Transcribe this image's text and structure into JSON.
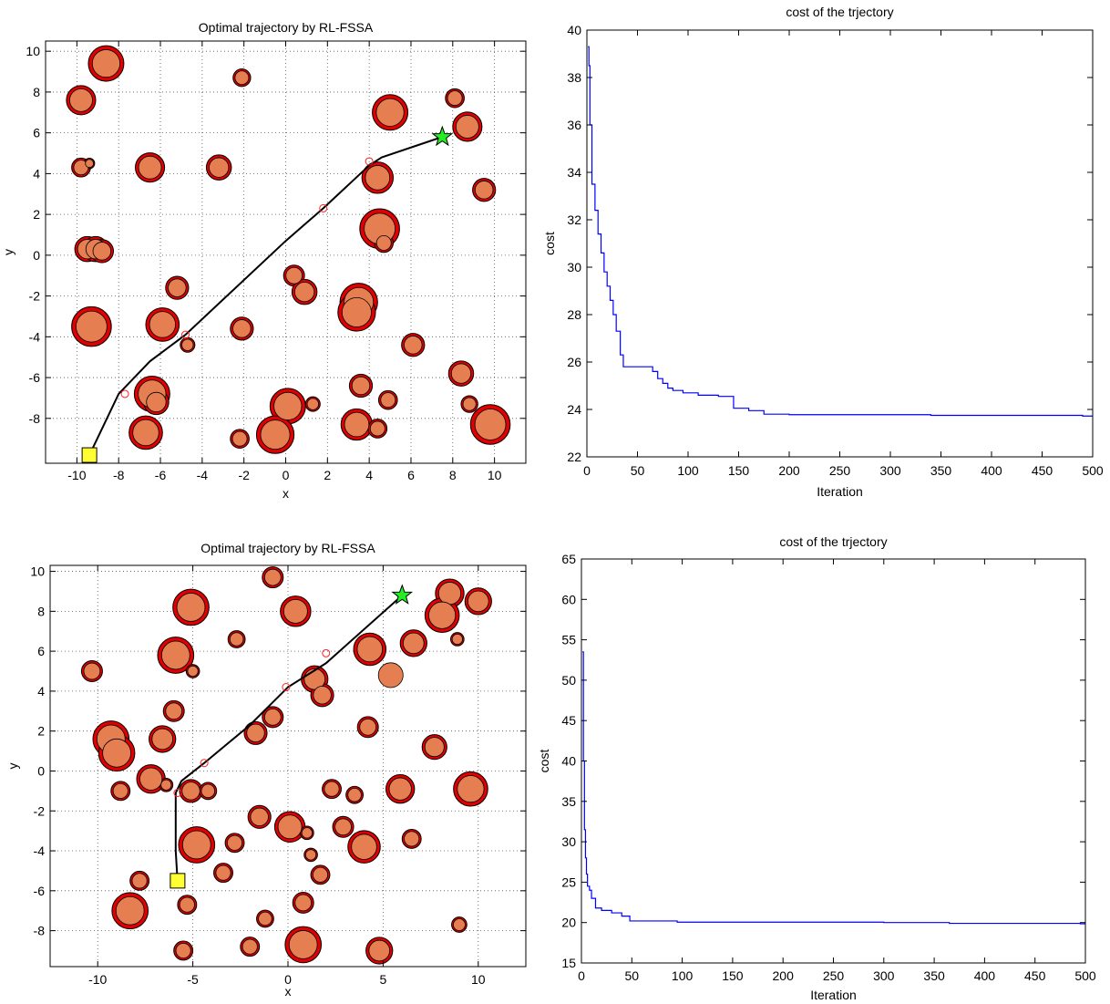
{
  "chart_data": [
    {
      "type": "scatter",
      "title": "Optimal trajectory by RL-FSSA",
      "xlabel": "x",
      "ylabel": "y",
      "xlim": [
        -11.5,
        11.5
      ],
      "ylim": [
        -10.2,
        10.5
      ],
      "xticks": [
        -10,
        -8,
        -6,
        -4,
        -2,
        0,
        2,
        4,
        6,
        8,
        10
      ],
      "yticks": [
        -8,
        -6,
        -4,
        -2,
        0,
        2,
        4,
        6,
        8,
        10
      ],
      "grid": true,
      "obstacles": [
        {
          "x": -8.6,
          "y": 9.4,
          "r": 0.85
        },
        {
          "x": -9.8,
          "y": 7.6,
          "r": 0.7
        },
        {
          "x": -2.1,
          "y": 8.7,
          "r": 0.42
        },
        {
          "x": 8.1,
          "y": 7.7,
          "r": 0.45
        },
        {
          "x": 5.0,
          "y": 7.0,
          "r": 0.85
        },
        {
          "x": 8.7,
          "y": 6.3,
          "r": 0.7
        },
        {
          "x": -9.8,
          "y": 4.3,
          "r": 0.45
        },
        {
          "x": -9.4,
          "y": 4.5,
          "r": 0.25
        },
        {
          "x": -6.5,
          "y": 4.3,
          "r": 0.7
        },
        {
          "x": -3.2,
          "y": 4.3,
          "r": 0.6
        },
        {
          "x": 4.4,
          "y": 3.8,
          "r": 0.75
        },
        {
          "x": 9.5,
          "y": 3.2,
          "r": 0.55
        },
        {
          "x": -9.5,
          "y": 0.3,
          "r": 0.6
        },
        {
          "x": -9.1,
          "y": 0.3,
          "r": 0.6
        },
        {
          "x": -8.8,
          "y": 0.2,
          "r": 0.55
        },
        {
          "x": 4.5,
          "y": 1.3,
          "r": 0.95
        },
        {
          "x": 4.7,
          "y": 0.6,
          "r": 0.45
        },
        {
          "x": -5.2,
          "y": -1.6,
          "r": 0.55
        },
        {
          "x": 0.4,
          "y": -1.0,
          "r": 0.5
        },
        {
          "x": 0.9,
          "y": -1.8,
          "r": 0.6
        },
        {
          "x": 3.5,
          "y": -2.3,
          "r": 0.9
        },
        {
          "x": 3.4,
          "y": -2.8,
          "r": 0.9
        },
        {
          "x": -9.3,
          "y": -3.5,
          "r": 0.95
        },
        {
          "x": -5.9,
          "y": -3.4,
          "r": 0.8
        },
        {
          "x": -2.1,
          "y": -3.6,
          "r": 0.55
        },
        {
          "x": -4.7,
          "y": -4.4,
          "r": 0.35
        },
        {
          "x": 6.1,
          "y": -4.4,
          "r": 0.55
        },
        {
          "x": 8.4,
          "y": -5.8,
          "r": 0.6
        },
        {
          "x": 3.6,
          "y": -6.4,
          "r": 0.55
        },
        {
          "x": -6.4,
          "y": -6.8,
          "r": 0.85
        },
        {
          "x": -6.2,
          "y": -7.2,
          "r": 0.6
        },
        {
          "x": 0.1,
          "y": -7.4,
          "r": 0.85
        },
        {
          "x": 1.3,
          "y": -7.3,
          "r": 0.35
        },
        {
          "x": 4.9,
          "y": -7.1,
          "r": 0.45
        },
        {
          "x": 8.8,
          "y": -7.3,
          "r": 0.4
        },
        {
          "x": -6.7,
          "y": -8.7,
          "r": 0.8
        },
        {
          "x": 3.4,
          "y": -8.3,
          "r": 0.75
        },
        {
          "x": 4.4,
          "y": -8.5,
          "r": 0.45
        },
        {
          "x": 9.8,
          "y": -8.3,
          "r": 0.95
        },
        {
          "x": -2.2,
          "y": -9.0,
          "r": 0.45
        },
        {
          "x": -0.5,
          "y": -8.8,
          "r": 0.9
        }
      ],
      "path": {
        "x": [
          -9.4,
          -8.0,
          -6.5,
          -4.8,
          0.0,
          1.8,
          4.0,
          4.6,
          7.5
        ],
        "y": [
          -9.8,
          -6.8,
          -5.2,
          -3.9,
          0.7,
          2.3,
          4.4,
          4.8,
          5.8
        ]
      },
      "waypoints": {
        "x": [
          -7.7,
          -4.8,
          1.8,
          4.0
        ],
        "y": [
          -6.8,
          -3.9,
          2.3,
          4.6
        ]
      },
      "start": {
        "x": -9.4,
        "y": -9.8
      },
      "goal": {
        "x": 7.5,
        "y": 5.8
      },
      "colors": {
        "fill": "#e57e50",
        "ring": "#e00000",
        "path": "#000000",
        "waypoint": "#ff2020",
        "start": "#ffff33",
        "goal": "#22ee22"
      }
    },
    {
      "type": "line",
      "title": "cost of the trjectory",
      "xlabel": "Iteration",
      "ylabel": "cost",
      "xlim": [
        0,
        500
      ],
      "ylim": [
        22,
        40
      ],
      "xticks": [
        0,
        50,
        100,
        150,
        200,
        250,
        300,
        350,
        400,
        450,
        500
      ],
      "yticks": [
        22,
        24,
        26,
        28,
        30,
        32,
        34,
        36,
        38,
        40
      ],
      "grid": false,
      "series": [
        {
          "x": [
            1,
            2,
            3,
            5,
            8,
            11,
            14,
            17,
            20,
            23,
            26,
            29,
            33,
            36,
            50,
            65,
            70,
            75,
            80,
            85,
            95,
            110,
            130,
            145,
            160,
            175,
            200,
            340,
            490,
            500
          ],
          "y": [
            39.3,
            38.5,
            36.0,
            33.5,
            32.4,
            31.4,
            30.6,
            29.8,
            29.2,
            28.6,
            28.0,
            27.3,
            26.3,
            25.8,
            25.8,
            25.6,
            25.3,
            25.1,
            24.9,
            24.8,
            24.7,
            24.6,
            24.55,
            24.05,
            23.95,
            23.8,
            23.78,
            23.75,
            23.72,
            23.7
          ],
          "color": "#0000ff"
        }
      ]
    },
    {
      "type": "scatter",
      "title": "Optimal trajectory by RL-FSSA",
      "xlabel": "x",
      "ylabel": "y",
      "xlim": [
        -12.5,
        12.5
      ],
      "ylim": [
        -9.8,
        10.3
      ],
      "xticks": [
        -10,
        -5,
        0,
        5,
        10
      ],
      "yticks": [
        -8,
        -6,
        -4,
        -2,
        0,
        2,
        4,
        6,
        8,
        10
      ],
      "grid": true,
      "obstacles": [
        {
          "x": -0.8,
          "y": 9.7,
          "r": 0.55
        },
        {
          "x": 8.5,
          "y": 8.9,
          "r": 0.75
        },
        {
          "x": 10.0,
          "y": 8.5,
          "r": 0.7
        },
        {
          "x": -5.1,
          "y": 8.2,
          "r": 0.95
        },
        {
          "x": 0.4,
          "y": 8.0,
          "r": 0.8
        },
        {
          "x": 8.1,
          "y": 7.8,
          "r": 0.9
        },
        {
          "x": -2.7,
          "y": 6.6,
          "r": 0.45
        },
        {
          "x": 8.9,
          "y": 6.6,
          "r": 0.35
        },
        {
          "x": 6.6,
          "y": 6.4,
          "r": 0.7
        },
        {
          "x": 4.3,
          "y": 6.1,
          "r": 0.85
        },
        {
          "x": -5.9,
          "y": 5.8,
          "r": 0.95
        },
        {
          "x": -10.3,
          "y": 5.0,
          "r": 0.55
        },
        {
          "x": -5.0,
          "y": 5.0,
          "r": 0.35
        },
        {
          "x": 1.4,
          "y": 4.6,
          "r": 0.7
        },
        {
          "x": 1.8,
          "y": 3.8,
          "r": 0.6
        },
        {
          "x": -6.0,
          "y": 3.0,
          "r": 0.55
        },
        {
          "x": -0.8,
          "y": 2.7,
          "r": 0.55
        },
        {
          "x": 4.2,
          "y": 2.2,
          "r": 0.55
        },
        {
          "x": -9.3,
          "y": 1.6,
          "r": 0.95
        },
        {
          "x": -1.7,
          "y": 1.9,
          "r": 0.6
        },
        {
          "x": -6.6,
          "y": 1.6,
          "r": 0.7
        },
        {
          "x": -9.0,
          "y": 0.9,
          "r": 0.95
        },
        {
          "x": 7.7,
          "y": 1.2,
          "r": 0.65
        },
        {
          "x": -7.2,
          "y": -0.4,
          "r": 0.75
        },
        {
          "x": -6.4,
          "y": -0.7,
          "r": 0.35
        },
        {
          "x": -8.8,
          "y": -1.0,
          "r": 0.5
        },
        {
          "x": -5.1,
          "y": -1.0,
          "r": 0.6
        },
        {
          "x": -4.2,
          "y": -1.0,
          "r": 0.45
        },
        {
          "x": 2.3,
          "y": -0.9,
          "r": 0.5
        },
        {
          "x": 3.5,
          "y": -1.2,
          "r": 0.45
        },
        {
          "x": 5.9,
          "y": -0.9,
          "r": 0.75
        },
        {
          "x": 9.6,
          "y": -0.9,
          "r": 0.9
        },
        {
          "x": -1.5,
          "y": -2.3,
          "r": 0.6
        },
        {
          "x": 0.1,
          "y": -2.8,
          "r": 0.8
        },
        {
          "x": 2.9,
          "y": -2.8,
          "r": 0.55
        },
        {
          "x": 1.0,
          "y": -3.1,
          "r": 0.35
        },
        {
          "x": -4.8,
          "y": -3.7,
          "r": 0.95
        },
        {
          "x": -2.8,
          "y": -3.6,
          "r": 0.5
        },
        {
          "x": 4.0,
          "y": -3.8,
          "r": 0.85
        },
        {
          "x": 6.5,
          "y": -3.4,
          "r": 0.5
        },
        {
          "x": 1.2,
          "y": -4.2,
          "r": 0.35
        },
        {
          "x": -3.4,
          "y": -5.1,
          "r": 0.5
        },
        {
          "x": 1.7,
          "y": -5.2,
          "r": 0.5
        },
        {
          "x": -7.8,
          "y": -5.5,
          "r": 0.5
        },
        {
          "x": -5.3,
          "y": -6.7,
          "r": 0.5
        },
        {
          "x": 0.8,
          "y": -6.6,
          "r": 0.55
        },
        {
          "x": -8.3,
          "y": -7.0,
          "r": 0.95
        },
        {
          "x": -1.2,
          "y": -7.4,
          "r": 0.45
        },
        {
          "x": 9.0,
          "y": -7.7,
          "r": 0.4
        },
        {
          "x": 0.8,
          "y": -8.7,
          "r": 0.95
        },
        {
          "x": -2.0,
          "y": -8.8,
          "r": 0.5
        },
        {
          "x": -5.5,
          "y": -9.0,
          "r": 0.5
        },
        {
          "x": 4.8,
          "y": -9.0,
          "r": 0.7
        }
      ],
      "plain_obstacles": [
        {
          "x": 5.4,
          "y": 4.8,
          "r": 0.65
        }
      ],
      "path": {
        "x": [
          -5.8,
          -5.9,
          -5.9,
          -5.6,
          -4.4,
          -2.0,
          0.0,
          2.0,
          6.0
        ],
        "y": [
          -5.6,
          -4.0,
          -1.1,
          -0.5,
          0.4,
          2.3,
          4.2,
          5.4,
          8.8
        ]
      },
      "waypoints": {
        "x": [
          -5.8,
          -4.4,
          -0.1,
          2.0
        ],
        "y": [
          -1.1,
          0.4,
          4.2,
          5.9
        ]
      },
      "start": {
        "x": -5.8,
        "y": -5.5
      },
      "goal": {
        "x": 6.0,
        "y": 8.8
      },
      "colors": {
        "fill": "#e57e50",
        "ring": "#e00000",
        "path": "#000000",
        "waypoint": "#ff2020",
        "start": "#ffff33",
        "goal": "#22ee22"
      }
    },
    {
      "type": "line",
      "title": "cost of the trjectory",
      "xlabel": "Iteration",
      "ylabel": "cost",
      "xlim": [
        0,
        500
      ],
      "ylim": [
        15,
        65
      ],
      "xticks": [
        0,
        50,
        100,
        150,
        200,
        250,
        300,
        350,
        400,
        450,
        500
      ],
      "yticks": [
        15,
        20,
        25,
        30,
        35,
        40,
        45,
        50,
        55,
        60,
        65
      ],
      "grid": false,
      "series": [
        {
          "x": [
            1,
            2,
            3,
            4,
            5,
            6,
            8,
            10,
            14,
            20,
            30,
            40,
            48,
            95,
            300,
            365,
            495,
            500
          ],
          "y": [
            53.5,
            40.0,
            31.5,
            28.0,
            26.0,
            24.5,
            24.0,
            23.0,
            21.8,
            21.5,
            21.2,
            20.8,
            20.2,
            20.05,
            20.0,
            19.9,
            19.85,
            20.0
          ],
          "color": "#0000ff"
        }
      ]
    }
  ]
}
